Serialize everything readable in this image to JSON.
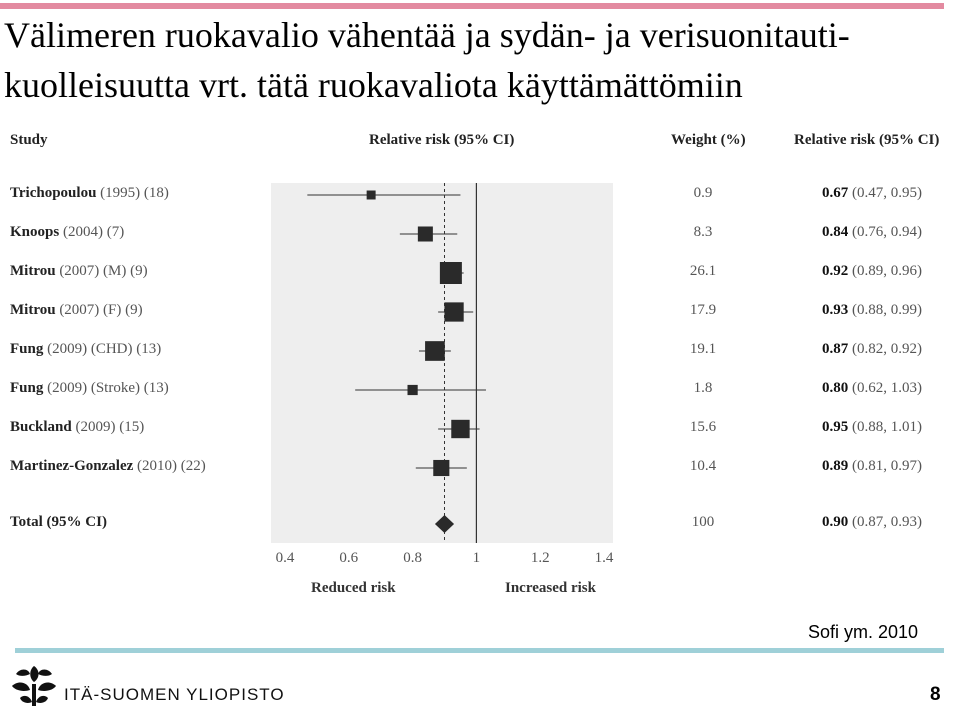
{
  "slide": {
    "title_line1": "Välimeren ruokavalio vähentää ja sydän- ja verisuonitauti-",
    "title_line2": "kuolleisuutta vrt. tätä ruokavaliota käyttämättömiin",
    "citation": "Sofi ym. 2010",
    "page_number": "8",
    "logo_text": "ITÄ-SUOMEN YLIOPISTO",
    "colors": {
      "top_bar": "#e38aa0",
      "bottom_bar": "#9fd0d8",
      "plot_bg": "#eeeeee",
      "marker": "#2a2a2a"
    }
  },
  "headers": {
    "study": "Study",
    "plot_rr": "Relative risk (95% CI)",
    "weight": "Weight (%)",
    "rr_text": "Relative risk (95% CI)"
  },
  "axis": {
    "ticks": [
      "0.4",
      "0.6",
      "0.8",
      "1",
      "1.2",
      "1.4"
    ],
    "reduced": "Reduced risk",
    "increased": "Increased risk"
  },
  "chart_data": {
    "type": "forest",
    "xlim": [
      0.4,
      1.4
    ],
    "reference_line": 1,
    "pooled_line": 0.9,
    "studies": [
      {
        "name": "Trichopoulou",
        "rest": "(1995) (18)",
        "weight": "0.9",
        "rr": 0.67,
        "lo": 0.47,
        "hi": 0.95,
        "rr_text": "0.67",
        "ci_text": "(0.47, 0.95)"
      },
      {
        "name": "Knoops",
        "rest": "(2004) (7)",
        "weight": "8.3",
        "rr": 0.84,
        "lo": 0.76,
        "hi": 0.94,
        "rr_text": "0.84",
        "ci_text": "(0.76, 0.94)"
      },
      {
        "name": "Mitrou",
        "rest": "(2007) (M) (9)",
        "weight": "26.1",
        "rr": 0.92,
        "lo": 0.89,
        "hi": 0.96,
        "rr_text": "0.92",
        "ci_text": "(0.89, 0.96)"
      },
      {
        "name": "Mitrou",
        "rest": "(2007) (F) (9)",
        "weight": "17.9",
        "rr": 0.93,
        "lo": 0.88,
        "hi": 0.99,
        "rr_text": "0.93",
        "ci_text": "(0.88, 0.99)"
      },
      {
        "name": "Fung",
        "rest": "(2009) (CHD) (13)",
        "weight": "19.1",
        "rr": 0.87,
        "lo": 0.82,
        "hi": 0.92,
        "rr_text": "0.87",
        "ci_text": "(0.82, 0.92)"
      },
      {
        "name": "Fung",
        "rest": "(2009) (Stroke) (13)",
        "weight": "1.8",
        "rr": 0.8,
        "lo": 0.62,
        "hi": 1.03,
        "rr_text": "0.80",
        "ci_text": "(0.62, 1.03)"
      },
      {
        "name": "Buckland",
        "rest": "(2009) (15)",
        "weight": "15.6",
        "rr": 0.95,
        "lo": 0.88,
        "hi": 1.01,
        "rr_text": "0.95",
        "ci_text": "(0.88, 1.01)"
      },
      {
        "name": "Martinez-Gonzalez",
        "rest": "(2010) (22)",
        "weight": "10.4",
        "rr": 0.89,
        "lo": 0.81,
        "hi": 0.97,
        "rr_text": "0.89",
        "ci_text": "(0.81, 0.97)"
      }
    ],
    "total": {
      "name": "Total (95% CI)",
      "weight": "100",
      "rr": 0.9,
      "lo": 0.87,
      "hi": 0.93,
      "rr_text": "0.90",
      "ci_text": "(0.87, 0.93)"
    }
  }
}
